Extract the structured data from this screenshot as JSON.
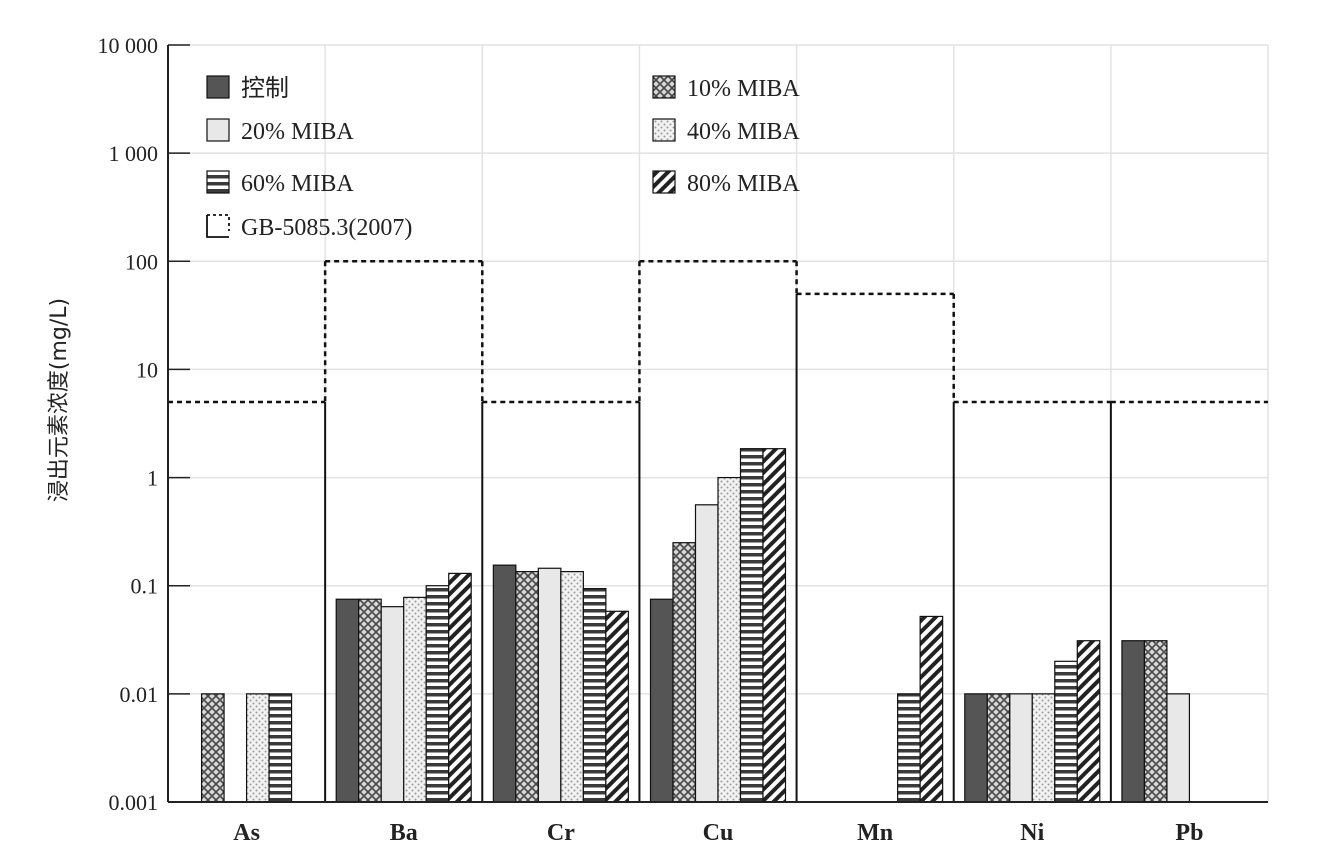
{
  "chart_data": {
    "type": "bar",
    "ylabel": "浸出元素浓度(mg/L)",
    "xlabel": "",
    "yscale": "log",
    "ylim": [
      0.001,
      10000
    ],
    "yticks": [
      {
        "value": 0.001,
        "label": "0.001"
      },
      {
        "value": 0.01,
        "label": "0.01"
      },
      {
        "value": 0.1,
        "label": "0.1"
      },
      {
        "value": 1,
        "label": "1"
      },
      {
        "value": 10,
        "label": "10"
      },
      {
        "value": 100,
        "label": "100"
      },
      {
        "value": 1000,
        "label": "1 000"
      },
      {
        "value": 10000,
        "label": "10 000"
      }
    ],
    "grid": "horizontal",
    "legend_position": "top",
    "categories": [
      "As",
      "Ba",
      "Cr",
      "Cu",
      "Mn",
      "Ni",
      "Pb"
    ],
    "series": [
      {
        "name": "控制",
        "pattern": "solid-dark",
        "values": [
          null,
          0.075,
          0.155,
          0.075,
          null,
          0.01,
          0.031
        ]
      },
      {
        "name": "10% MIBA",
        "pattern": "crosshatch",
        "values": [
          0.01,
          0.075,
          0.135,
          0.25,
          null,
          0.01,
          0.031
        ]
      },
      {
        "name": "20% MIBA",
        "pattern": "solid-light",
        "values": [
          null,
          0.064,
          0.145,
          0.56,
          null,
          0.01,
          0.01
        ]
      },
      {
        "name": "40% MIBA",
        "pattern": "dots",
        "values": [
          0.01,
          0.078,
          0.135,
          1.0,
          null,
          0.01,
          null
        ]
      },
      {
        "name": "60% MIBA",
        "pattern": "horizontal-stripes",
        "values": [
          0.01,
          0.1,
          0.094,
          1.85,
          0.01,
          0.02,
          null
        ]
      },
      {
        "name": "80% MIBA",
        "pattern": "diagonal",
        "values": [
          null,
          0.13,
          0.058,
          1.85,
          0.052,
          0.031,
          null
        ]
      }
    ],
    "reference": {
      "name": "GB-5085.3(2007)",
      "style": "dashed",
      "values": [
        5,
        100,
        5,
        100,
        50,
        5,
        5
      ]
    }
  }
}
